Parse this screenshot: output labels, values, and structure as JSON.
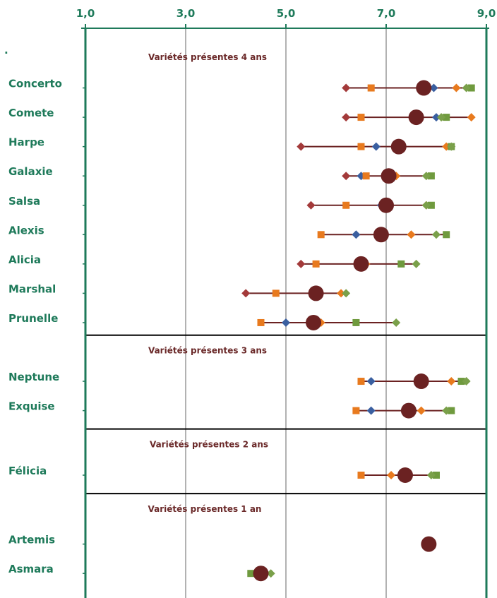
{
  "chart_data": {
    "type": "scatter",
    "x_ticks": [
      "1,0",
      "3,0",
      "5,0",
      "7,0",
      "9,0"
    ],
    "xlim": [
      1,
      9
    ],
    "stray_mark": ".",
    "colors": {
      "axis": "#1e7a5a",
      "label": "#1e7a5a",
      "group": "#6b2a2a",
      "grid": "#999999",
      "divider": "#000000",
      "big": "#6b2222",
      "red_diamond": "#a33a3a",
      "orange_square": "#e87a1e",
      "orange_diamond": "#e87a1e",
      "blue_diamond": "#3a5fa0",
      "green_diamond": "#7aa04a",
      "green_square": "#6f9a3e"
    },
    "groups": [
      {
        "label": "Variétés présentes 4 ans",
        "rows": [
          {
            "name": "Concerto",
            "range": [
              6.2,
              8.7
            ],
            "points": [
              {
                "s": "red_diamond",
                "x": 6.2
              },
              {
                "s": "orange_square",
                "x": 6.7
              },
              {
                "s": "blue_diamond",
                "x": 7.95
              },
              {
                "s": "orange_diamond",
                "x": 8.4
              },
              {
                "s": "green_square",
                "x": 8.7
              },
              {
                "s": "green_diamond",
                "x": 8.6
              },
              {
                "s": "big",
                "x": 7.75
              }
            ]
          },
          {
            "name": "Comete",
            "range": [
              6.2,
              8.7
            ],
            "points": [
              {
                "s": "red_diamond",
                "x": 6.2
              },
              {
                "s": "orange_square",
                "x": 6.5
              },
              {
                "s": "blue_diamond",
                "x": 8.0
              },
              {
                "s": "green_square",
                "x": 8.2
              },
              {
                "s": "green_diamond",
                "x": 8.1
              },
              {
                "s": "orange_diamond",
                "x": 8.7
              },
              {
                "s": "big",
                "x": 7.6
              }
            ]
          },
          {
            "name": "Harpe",
            "range": [
              5.3,
              8.3
            ],
            "points": [
              {
                "s": "red_diamond",
                "x": 5.3
              },
              {
                "s": "orange_square",
                "x": 6.5
              },
              {
                "s": "blue_diamond",
                "x": 6.8
              },
              {
                "s": "orange_diamond",
                "x": 8.2
              },
              {
                "s": "green_square",
                "x": 8.3
              },
              {
                "s": "green_diamond",
                "x": 8.3
              },
              {
                "s": "big",
                "x": 7.25
              }
            ]
          },
          {
            "name": "Galaxie",
            "range": [
              6.2,
              7.9
            ],
            "points": [
              {
                "s": "red_diamond",
                "x": 6.2
              },
              {
                "s": "blue_diamond",
                "x": 6.5
              },
              {
                "s": "orange_square",
                "x": 6.6
              },
              {
                "s": "orange_diamond",
                "x": 7.2
              },
              {
                "s": "green_square",
                "x": 7.9
              },
              {
                "s": "green_diamond",
                "x": 7.8
              },
              {
                "s": "big",
                "x": 7.05
              }
            ]
          },
          {
            "name": "Salsa",
            "range": [
              5.5,
              7.9
            ],
            "points": [
              {
                "s": "red_diamond",
                "x": 5.5
              },
              {
                "s": "orange_square",
                "x": 6.2
              },
              {
                "s": "blue_diamond",
                "x": 6.9
              },
              {
                "s": "orange_diamond",
                "x": 7.8
              },
              {
                "s": "green_square",
                "x": 7.9
              },
              {
                "s": "green_diamond",
                "x": 7.8
              },
              {
                "s": "big",
                "x": 7.0
              }
            ]
          },
          {
            "name": "Alexis",
            "range": [
              5.7,
              8.2
            ],
            "points": [
              {
                "s": "orange_square",
                "x": 5.7
              },
              {
                "s": "blue_diamond",
                "x": 6.4
              },
              {
                "s": "orange_diamond",
                "x": 7.5
              },
              {
                "s": "green_diamond",
                "x": 8.0
              },
              {
                "s": "green_square",
                "x": 8.2
              },
              {
                "s": "big",
                "x": 6.9
              }
            ]
          },
          {
            "name": "Alicia",
            "range": [
              5.3,
              7.6
            ],
            "points": [
              {
                "s": "red_diamond",
                "x": 5.3
              },
              {
                "s": "orange_square",
                "x": 5.6
              },
              {
                "s": "orange_diamond",
                "x": 6.6
              },
              {
                "s": "green_square",
                "x": 7.3
              },
              {
                "s": "green_diamond",
                "x": 7.6
              },
              {
                "s": "big",
                "x": 6.5
              }
            ]
          },
          {
            "name": "Marshal",
            "range": [
              4.2,
              6.2
            ],
            "points": [
              {
                "s": "red_diamond",
                "x": 4.2
              },
              {
                "s": "orange_square",
                "x": 4.8
              },
              {
                "s": "orange_diamond",
                "x": 6.1
              },
              {
                "s": "green_diamond",
                "x": 6.2
              },
              {
                "s": "big",
                "x": 5.6
              }
            ]
          },
          {
            "name": "Prunelle",
            "range": [
              4.5,
              7.2
            ],
            "points": [
              {
                "s": "orange_square",
                "x": 4.5
              },
              {
                "s": "blue_diamond",
                "x": 5.0
              },
              {
                "s": "orange_diamond",
                "x": 5.7
              },
              {
                "s": "green_square",
                "x": 6.4
              },
              {
                "s": "green_diamond",
                "x": 7.2
              },
              {
                "s": "big",
                "x": 5.55
              }
            ]
          }
        ]
      },
      {
        "label": "Variétés présentes 3 ans",
        "rows": [
          {
            "name": "Neptune",
            "range": [
              6.5,
              8.6
            ],
            "points": [
              {
                "s": "orange_square",
                "x": 6.5
              },
              {
                "s": "blue_diamond",
                "x": 6.7
              },
              {
                "s": "orange_diamond",
                "x": 8.3
              },
              {
                "s": "green_square",
                "x": 8.5
              },
              {
                "s": "green_diamond",
                "x": 8.6
              },
              {
                "s": "big",
                "x": 7.7
              }
            ]
          },
          {
            "name": "Exquise",
            "range": [
              6.4,
              8.3
            ],
            "points": [
              {
                "s": "orange_square",
                "x": 6.4
              },
              {
                "s": "blue_diamond",
                "x": 6.7
              },
              {
                "s": "orange_diamond",
                "x": 7.7
              },
              {
                "s": "green_square",
                "x": 8.3
              },
              {
                "s": "green_diamond",
                "x": 8.2
              },
              {
                "s": "big",
                "x": 7.45
              }
            ]
          }
        ]
      },
      {
        "label": "Variétés présentes 2 ans",
        "rows": [
          {
            "name": "Félicia",
            "range": [
              6.5,
              8.0
            ],
            "points": [
              {
                "s": "orange_square",
                "x": 6.5
              },
              {
                "s": "orange_diamond",
                "x": 7.1
              },
              {
                "s": "green_square",
                "x": 8.0
              },
              {
                "s": "green_diamond",
                "x": 7.9
              },
              {
                "s": "big",
                "x": 7.38
              }
            ]
          }
        ]
      },
      {
        "label": "Variétés présentes 1 an",
        "rows": [
          {
            "name": "Artemis",
            "range": null,
            "points": [
              {
                "s": "big",
                "x": 7.85
              }
            ]
          },
          {
            "name": "Asmara",
            "range": [
              4.3,
              4.7
            ],
            "points": [
              {
                "s": "green_square",
                "x": 4.3
              },
              {
                "s": "green_diamond",
                "x": 4.7
              },
              {
                "s": "big",
                "x": 4.5
              }
            ]
          }
        ]
      }
    ]
  }
}
